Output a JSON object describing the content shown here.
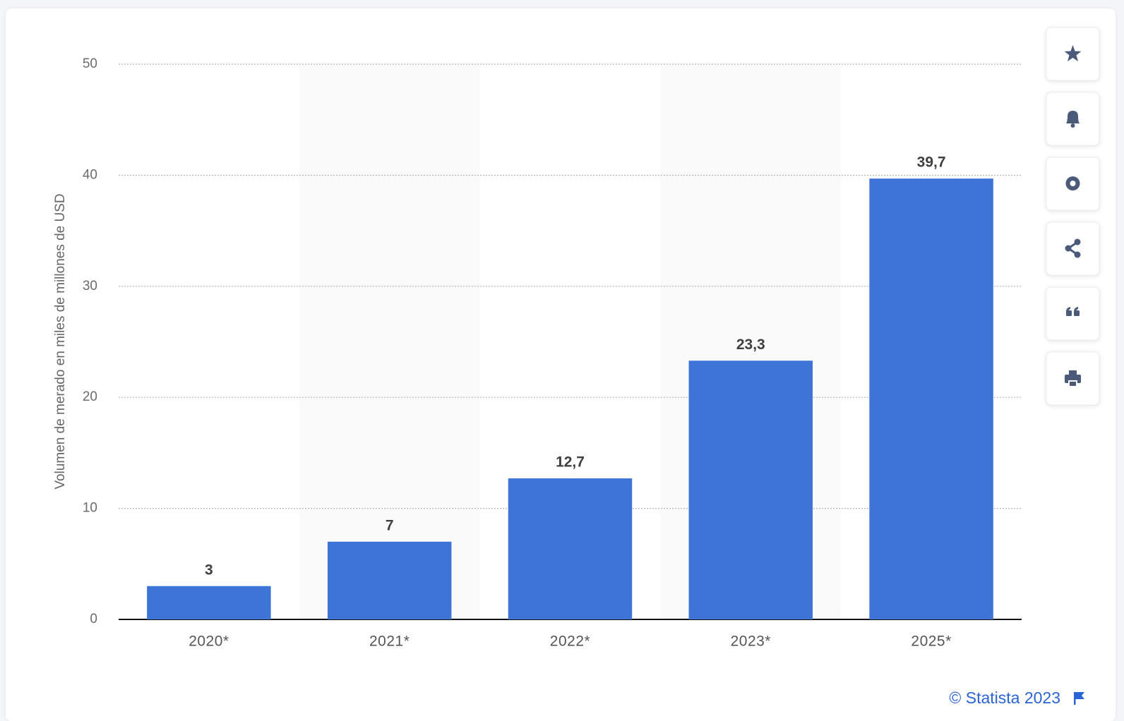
{
  "chart_data": {
    "type": "bar",
    "y_label": "Volumen de merado en miles de millones de USD",
    "categories": [
      "2020*",
      "2021*",
      "2022*",
      "2023*",
      "2025*"
    ],
    "values": [
      3,
      7,
      12.7,
      23.3,
      39.7
    ],
    "value_labels": [
      "3",
      "7",
      "12,7",
      "23,3",
      "39,7"
    ],
    "color": "#3d74d6",
    "ylim": [
      0,
      50
    ],
    "yticks": [
      0,
      10,
      20,
      30,
      40,
      50
    ],
    "grid": true,
    "credit": "© Statista 2023"
  }
}
